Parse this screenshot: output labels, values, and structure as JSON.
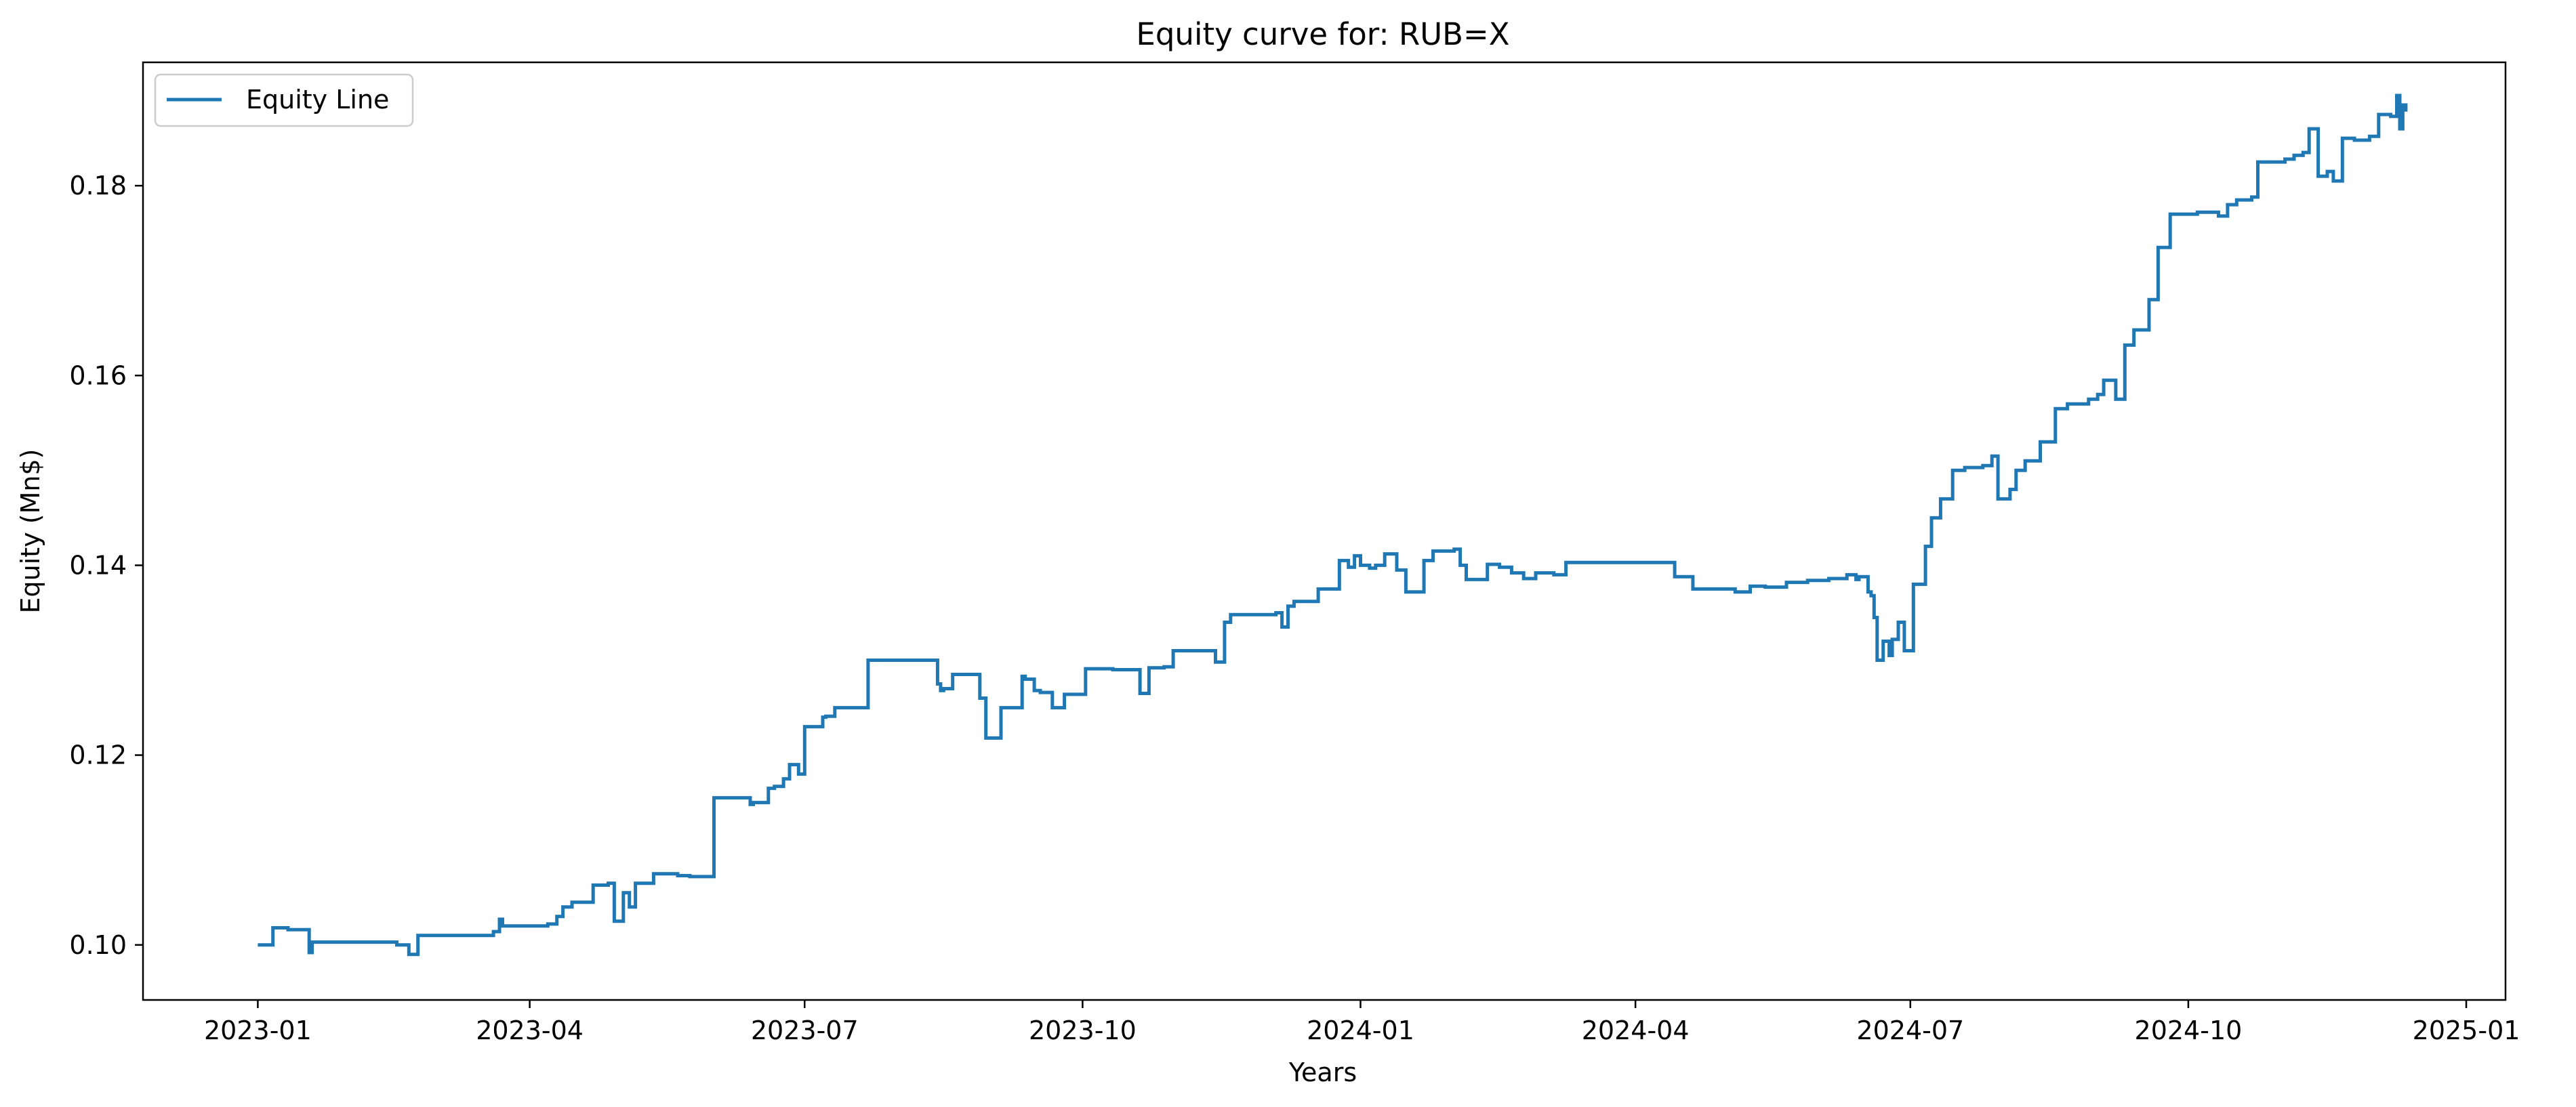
{
  "chart_data": {
    "type": "line",
    "title": "Equity curve for: RUB=X",
    "xlabel": "Years",
    "ylabel": "Equity (Mn$)",
    "x_axis": "date",
    "xlim": [
      "2022-11-24",
      "2025-01-14"
    ],
    "ylim": [
      0.0942,
      0.193
    ],
    "grid": false,
    "legend_position": "top-left",
    "x_ticks": [
      "2023-01",
      "2023-04",
      "2023-07",
      "2023-10",
      "2024-01",
      "2024-04",
      "2024-07",
      "2024-10",
      "2025-01"
    ],
    "x_tick_dates": [
      "2023-01-01",
      "2023-04-01",
      "2023-07-01",
      "2023-10-01",
      "2024-01-01",
      "2024-04-01",
      "2024-07-01",
      "2024-10-01",
      "2025-01-01"
    ],
    "y_ticks": [
      "0.10",
      "0.12",
      "0.14",
      "0.16",
      "0.18"
    ],
    "y_tick_values": [
      0.1,
      0.12,
      0.14,
      0.16,
      0.18
    ],
    "series": [
      {
        "name": "Equity Line",
        "color": "#1f77b4",
        "x": [
          "2023-01-01",
          "2023-01-05",
          "2023-01-06",
          "2023-01-11",
          "2023-01-17",
          "2023-01-18",
          "2023-01-19",
          "2023-02-15",
          "2023-02-16",
          "2023-02-20",
          "2023-02-22",
          "2023-02-23",
          "2023-03-10",
          "2023-03-20",
          "2023-03-22",
          "2023-03-23",
          "2023-03-27",
          "2023-04-07",
          "2023-04-10",
          "2023-04-12",
          "2023-04-15",
          "2023-04-22",
          "2023-04-27",
          "2023-04-29",
          "2023-05-02",
          "2023-05-04",
          "2023-05-06",
          "2023-05-10",
          "2023-05-12",
          "2023-05-20",
          "2023-05-24",
          "2023-05-31",
          "2023-06-01",
          "2023-06-13",
          "2023-06-14",
          "2023-06-19",
          "2023-06-21",
          "2023-06-24",
          "2023-06-26",
          "2023-06-29",
          "2023-07-01",
          "2023-07-07",
          "2023-07-08",
          "2023-07-11",
          "2023-07-18",
          "2023-07-22",
          "2023-08-14",
          "2023-08-15",
          "2023-08-16",
          "2023-08-17",
          "2023-08-19",
          "2023-08-24",
          "2023-08-28",
          "2023-08-30",
          "2023-09-04",
          "2023-09-08",
          "2023-09-11",
          "2023-09-12",
          "2023-09-15",
          "2023-09-17",
          "2023-09-21",
          "2023-09-25",
          "2023-10-02",
          "2023-10-11",
          "2023-10-13",
          "2023-10-20",
          "2023-10-23",
          "2023-10-25",
          "2023-10-28",
          "2023-10-31",
          "2023-11-14",
          "2023-11-17",
          "2023-11-19",
          "2023-12-04",
          "2023-12-06",
          "2023-12-08",
          "2023-12-10",
          "2023-12-13",
          "2023-12-18",
          "2023-12-25",
          "2023-12-28",
          "2023-12-30",
          "2024-01-01",
          "2024-01-04",
          "2024-01-06",
          "2024-01-09",
          "2024-01-13",
          "2024-01-16",
          "2024-01-22",
          "2024-01-25",
          "2024-02-01",
          "2024-02-03",
          "2024-02-05",
          "2024-02-12",
          "2024-02-16",
          "2024-02-20",
          "2024-02-24",
          "2024-02-28",
          "2024-03-05",
          "2024-03-09",
          "2024-04-01",
          "2024-04-14",
          "2024-04-16",
          "2024-04-20",
          "2024-05-04",
          "2024-05-06",
          "2024-05-09",
          "2024-05-14",
          "2024-05-21",
          "2024-05-28",
          "2024-06-04",
          "2024-06-10",
          "2024-06-13",
          "2024-06-14",
          "2024-06-17",
          "2024-06-18",
          "2024-06-19",
          "2024-06-20",
          "2024-06-22",
          "2024-06-24",
          "2024-06-25",
          "2024-06-27",
          "2024-06-29",
          "2024-07-02",
          "2024-07-06",
          "2024-07-08",
          "2024-07-11",
          "2024-07-15",
          "2024-07-19",
          "2024-07-25",
          "2024-07-28",
          "2024-07-30",
          "2024-08-03",
          "2024-08-05",
          "2024-08-08",
          "2024-08-13",
          "2024-08-18",
          "2024-08-22",
          "2024-08-27",
          "2024-08-29",
          "2024-09-01",
          "2024-09-03",
          "2024-09-07",
          "2024-09-10",
          "2024-09-13",
          "2024-09-18",
          "2024-09-21",
          "2024-09-25",
          "2024-09-28",
          "2024-10-04",
          "2024-10-08",
          "2024-10-11",
          "2024-10-14",
          "2024-10-17",
          "2024-10-22",
          "2024-10-24",
          "2024-11-02",
          "2024-11-05",
          "2024-11-08",
          "2024-11-10",
          "2024-11-13",
          "2024-11-16",
          "2024-11-18",
          "2024-11-21",
          "2024-11-25",
          "2024-11-30",
          "2024-12-03",
          "2024-12-07",
          "2024-12-09",
          "2024-12-10",
          "2024-12-11",
          "2024-12-12"
        ],
        "y": [
          0.1,
          0.1,
          0.1018,
          0.1016,
          0.1016,
          0.0992,
          0.1003,
          0.1003,
          0.1,
          0.099,
          0.099,
          0.101,
          0.101,
          0.1014,
          0.1027,
          0.102,
          0.102,
          0.1022,
          0.103,
          0.104,
          0.1045,
          0.1063,
          0.1065,
          0.1025,
          0.1055,
          0.104,
          0.1065,
          0.1065,
          0.1075,
          0.1073,
          0.1072,
          0.1072,
          0.1155,
          0.1148,
          0.115,
          0.1165,
          0.1167,
          0.1175,
          0.119,
          0.118,
          0.123,
          0.124,
          0.1241,
          0.125,
          0.125,
          0.13,
          0.1275,
          0.1268,
          0.127,
          0.127,
          0.1285,
          0.1285,
          0.126,
          0.1218,
          0.125,
          0.125,
          0.1283,
          0.128,
          0.1268,
          0.1266,
          0.125,
          0.1264,
          0.1291,
          0.129,
          0.129,
          0.1265,
          0.1292,
          0.1292,
          0.1293,
          0.131,
          0.1298,
          0.134,
          0.1348,
          0.135,
          0.1335,
          0.1357,
          0.1362,
          0.1362,
          0.1375,
          0.1405,
          0.1398,
          0.141,
          0.14,
          0.1397,
          0.14,
          0.1412,
          0.1395,
          0.1372,
          0.1405,
          0.1415,
          0.1417,
          0.14,
          0.1385,
          0.1401,
          0.1398,
          0.1392,
          0.1386,
          0.1392,
          0.139,
          0.1403,
          0.1403,
          0.1388,
          0.1388,
          0.1375,
          0.1372,
          0.1372,
          0.1378,
          0.1377,
          0.1382,
          0.1384,
          0.1386,
          0.139,
          0.1385,
          0.1388,
          0.1372,
          0.1368,
          0.1345,
          0.13,
          0.132,
          0.1305,
          0.1322,
          0.134,
          0.131,
          0.138,
          0.142,
          0.145,
          0.147,
          0.15,
          0.1503,
          0.1505,
          0.1515,
          0.147,
          0.148,
          0.15,
          0.151,
          0.153,
          0.1565,
          0.157,
          0.157,
          0.1575,
          0.158,
          0.1595,
          0.1575,
          0.1632,
          0.1648,
          0.168,
          0.1735,
          0.177,
          0.177,
          0.1772,
          0.1772,
          0.1768,
          0.178,
          0.1785,
          0.1788,
          0.1825,
          0.1828,
          0.1832,
          0.1835,
          0.186,
          0.181,
          0.1815,
          0.1805,
          0.185,
          0.1848,
          0.1852,
          0.1875,
          0.1873,
          0.1895,
          0.186,
          0.1885,
          0.1878
        ]
      }
    ]
  }
}
